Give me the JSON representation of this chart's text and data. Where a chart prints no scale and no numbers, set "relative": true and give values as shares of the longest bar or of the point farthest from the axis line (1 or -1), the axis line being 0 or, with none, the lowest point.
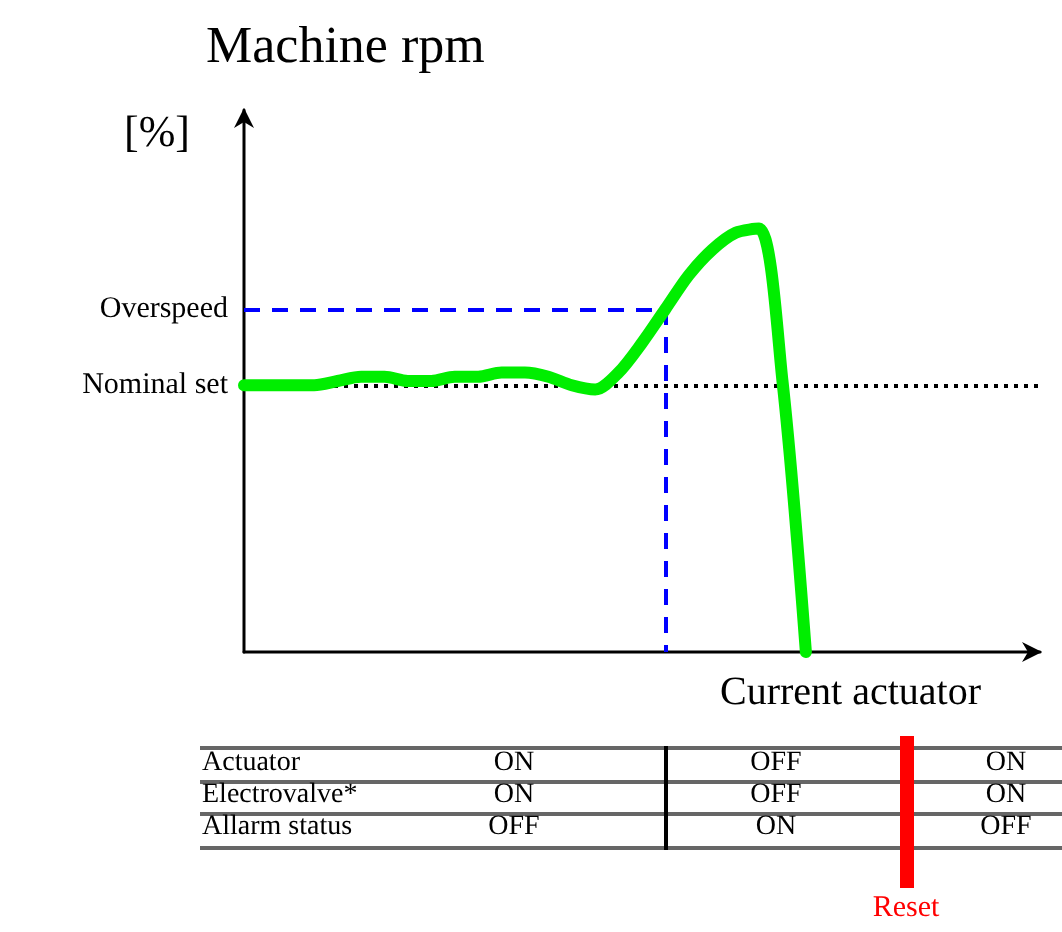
{
  "chart_data": {
    "type": "line",
    "title": "Machine rpm",
    "ylabel": "[%]",
    "xlabel": "Current actuator",
    "relative": true,
    "marker": "none",
    "categories": [
      null,
      null,
      null,
      null,
      null,
      null,
      null,
      null,
      null,
      null,
      null,
      null,
      null,
      null,
      null,
      null,
      null,
      null,
      null,
      null,
      null,
      null,
      null,
      null,
      null,
      null,
      null,
      null,
      null,
      null,
      null,
      null,
      null,
      null,
      null
    ],
    "series": [
      {
        "color": "#00ee00",
        "values": [
          0.63,
          0.63,
          0.63,
          0.63,
          0.64,
          0.65,
          0.65,
          0.64,
          0.64,
          0.65,
          0.65,
          0.66,
          0.66,
          0.65,
          0.63,
          0.62,
          0.66,
          0.73,
          0.81,
          0.89,
          0.95,
          0.99,
          1,
          0.64,
          0,
          null,
          null,
          null,
          null,
          null,
          null,
          null,
          null,
          null,
          null
        ]
      }
    ],
    "ref_lines": [
      {
        "axis": "y",
        "value": 0.81,
        "label": "Overspeed",
        "color": "#0000ff",
        "line_style": "dashed"
      },
      {
        "axis": "y",
        "value": 0.63,
        "label": "Nominal set",
        "color": "#000000",
        "line_style": "dotted"
      }
    ],
    "annotations": [
      "Actuator",
      "ON",
      "OFF",
      "ON",
      "Electrovalve*",
      "ON",
      "OFF",
      "ON",
      "Allarm status",
      "OFF",
      "ON",
      "OFF",
      "Reset"
    ]
  }
}
